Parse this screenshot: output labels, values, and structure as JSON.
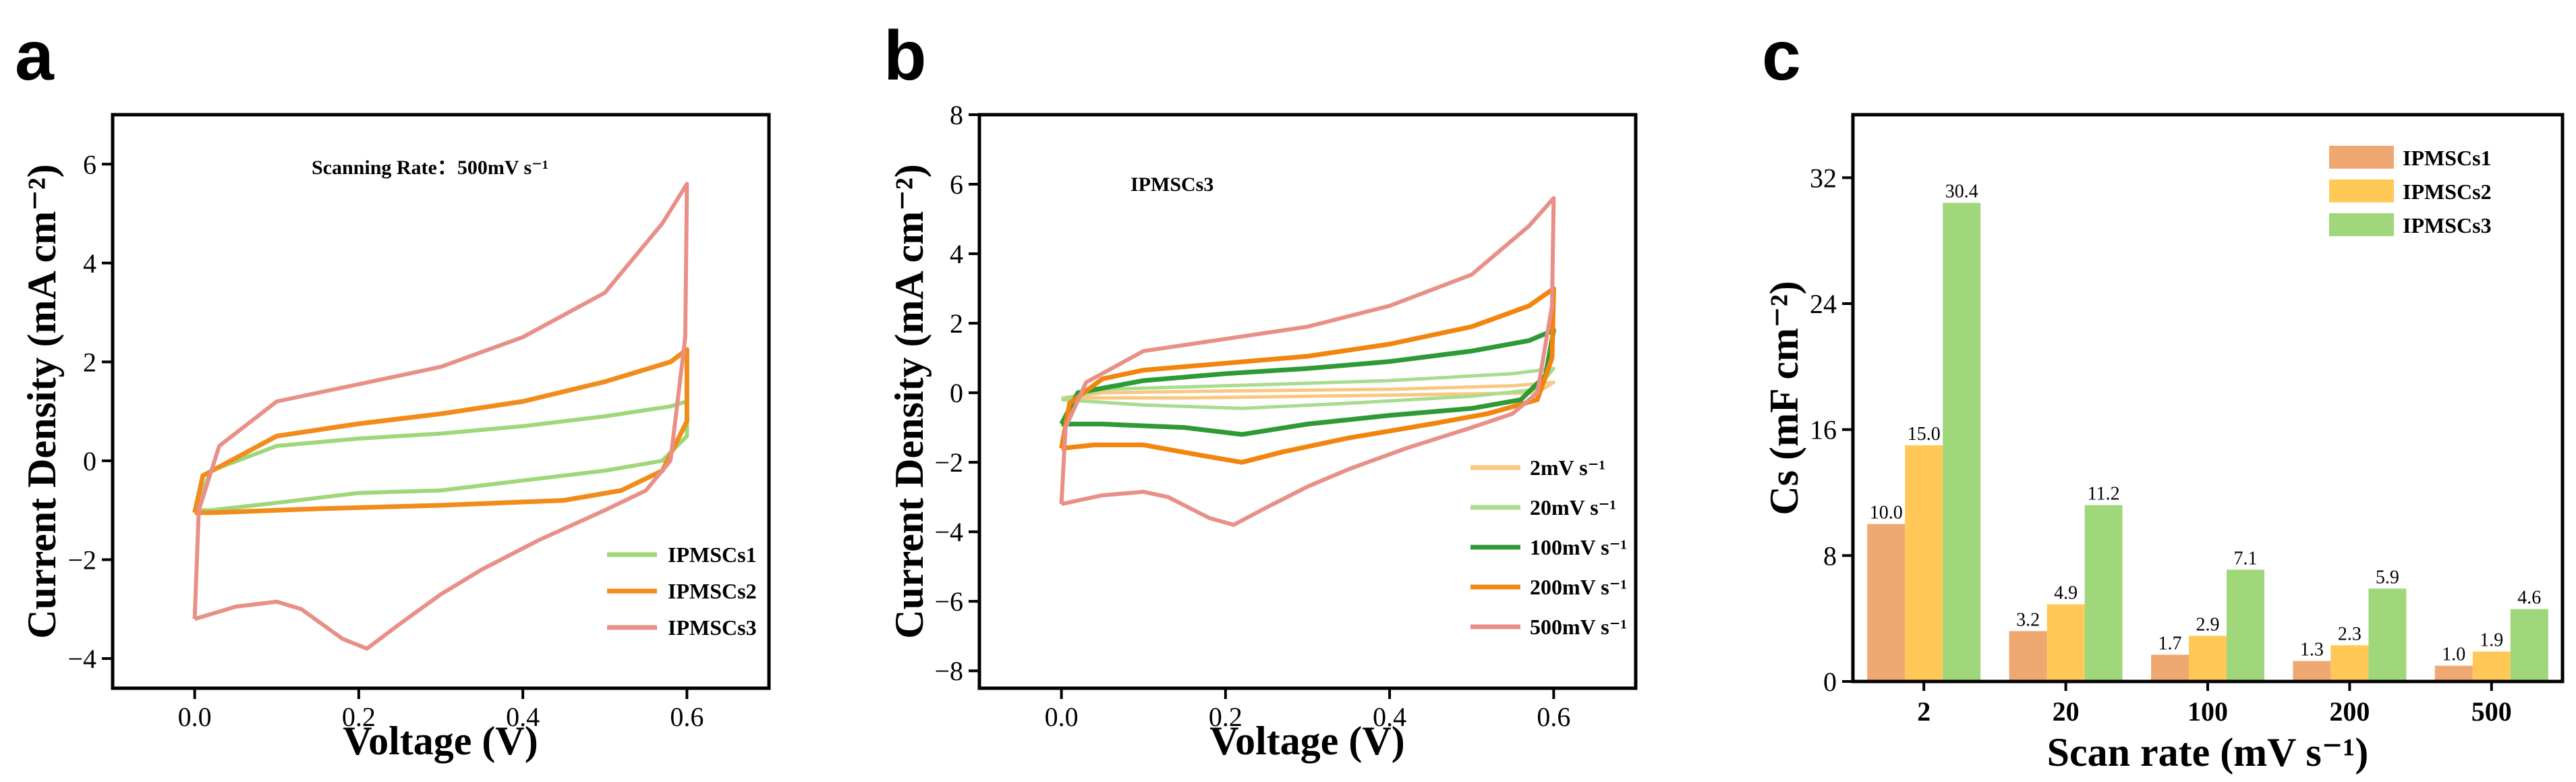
{
  "colors": {
    "IPMSCs1": "#9fd77a",
    "IPMSCs2": "#f18c1c",
    "IPMSCs3": "#e89088",
    "rate_2": "#f8c880",
    "rate_20": "#a8dc8e",
    "rate_100": "#2e9a35",
    "rate_200": "#f1850e",
    "rate_500": "#e89088",
    "bar1": "#f0a873",
    "bar2": "#ffc857",
    "bar3": "#9fd77a"
  },
  "chart_data": [
    {
      "panel": "a",
      "type": "line",
      "title": "Scanning Rate：500mV s⁻¹",
      "xlabel": "Voltage (V)",
      "ylabel": "Current Density (mA cm⁻²)",
      "xlim": [
        -0.1,
        0.7
      ],
      "ylim": [
        -4.6,
        7.0
      ],
      "xticks": [
        "0.0",
        "0.2",
        "0.4",
        "0.6"
      ],
      "yticks": [
        "−4",
        "−2",
        "0",
        "2",
        "4",
        "6"
      ],
      "legend": [
        "IPMSCs1",
        "IPMSCs2",
        "IPMSCs3"
      ],
      "legend_position": "bottom-right",
      "series": [
        {
          "name": "IPMSCs1",
          "anodic": [
            [
              0.0,
              -1.0
            ],
            [
              0.02,
              -0.2
            ],
            [
              0.1,
              0.3
            ],
            [
              0.2,
              0.45
            ],
            [
              0.3,
              0.55
            ],
            [
              0.4,
              0.7
            ],
            [
              0.5,
              0.9
            ],
            [
              0.58,
              1.1
            ],
            [
              0.6,
              1.2
            ]
          ],
          "cathodic": [
            [
              0.6,
              1.2
            ],
            [
              0.6,
              0.5
            ],
            [
              0.57,
              0.0
            ],
            [
              0.5,
              -0.2
            ],
            [
              0.4,
              -0.4
            ],
            [
              0.3,
              -0.6
            ],
            [
              0.2,
              -0.65
            ],
            [
              0.1,
              -0.85
            ],
            [
              0.02,
              -1.0
            ],
            [
              0.0,
              -1.0
            ]
          ]
        },
        {
          "name": "IPMSCs2",
          "anodic": [
            [
              0.0,
              -1.05
            ],
            [
              0.01,
              -0.3
            ],
            [
              0.1,
              0.5
            ],
            [
              0.2,
              0.75
            ],
            [
              0.3,
              0.95
            ],
            [
              0.4,
              1.2
            ],
            [
              0.5,
              1.6
            ],
            [
              0.58,
              2.0
            ],
            [
              0.6,
              2.25
            ]
          ],
          "cathodic": [
            [
              0.6,
              2.25
            ],
            [
              0.6,
              0.8
            ],
            [
              0.57,
              -0.2
            ],
            [
              0.52,
              -0.6
            ],
            [
              0.45,
              -0.8
            ],
            [
              0.3,
              -0.9
            ],
            [
              0.15,
              -0.97
            ],
            [
              0.02,
              -1.05
            ],
            [
              0.0,
              -1.05
            ]
          ]
        },
        {
          "name": "IPMSCs3",
          "anodic": [
            [
              0.0,
              -3.2
            ],
            [
              0.005,
              -1.0
            ],
            [
              0.03,
              0.3
            ],
            [
              0.1,
              1.2
            ],
            [
              0.2,
              1.55
            ],
            [
              0.3,
              1.9
            ],
            [
              0.4,
              2.5
            ],
            [
              0.5,
              3.4
            ],
            [
              0.57,
              4.8
            ],
            [
              0.6,
              5.6
            ]
          ],
          "cathodic": [
            [
              0.6,
              5.6
            ],
            [
              0.598,
              2.5
            ],
            [
              0.58,
              0.0
            ],
            [
              0.55,
              -0.6
            ],
            [
              0.5,
              -1.0
            ],
            [
              0.42,
              -1.6
            ],
            [
              0.35,
              -2.2
            ],
            [
              0.3,
              -2.7
            ],
            [
              0.25,
              -3.3
            ],
            [
              0.21,
              -3.8
            ],
            [
              0.18,
              -3.6
            ],
            [
              0.13,
              -3.0
            ],
            [
              0.1,
              -2.85
            ],
            [
              0.05,
              -2.95
            ],
            [
              0.01,
              -3.15
            ],
            [
              0.0,
              -3.2
            ]
          ]
        }
      ]
    },
    {
      "panel": "b",
      "type": "line",
      "title": "IPMSCs3",
      "xlabel": "Voltage (V)",
      "ylabel": "Current Density (mA cm⁻²)",
      "xlim": [
        -0.1,
        0.7
      ],
      "ylim": [
        -8.5,
        8.0
      ],
      "xticks": [
        "0.0",
        "0.2",
        "0.4",
        "0.6"
      ],
      "yticks": [
        "−8",
        "−6",
        "−4",
        "−2",
        "0",
        "2",
        "4",
        "6",
        "8"
      ],
      "legend": [
        "2mV s⁻¹",
        "20mV s⁻¹",
        "100mV s⁻¹",
        "200mV s⁻¹",
        "500mV s⁻¹"
      ],
      "legend_position": "bottom-right",
      "series": [
        {
          "name": "2mV s⁻¹",
          "anodic": [
            [
              0.0,
              -0.15
            ],
            [
              0.05,
              0.0
            ],
            [
              0.2,
              0.05
            ],
            [
              0.4,
              0.1
            ],
            [
              0.55,
              0.2
            ],
            [
              0.6,
              0.3
            ]
          ],
          "cathodic": [
            [
              0.6,
              0.3
            ],
            [
              0.58,
              0.0
            ],
            [
              0.45,
              -0.05
            ],
            [
              0.3,
              -0.1
            ],
            [
              0.15,
              -0.15
            ],
            [
              0.0,
              -0.15
            ]
          ]
        },
        {
          "name": "20mV s⁻¹",
          "anodic": [
            [
              0.0,
              -0.2
            ],
            [
              0.05,
              0.1
            ],
            [
              0.2,
              0.2
            ],
            [
              0.4,
              0.35
            ],
            [
              0.55,
              0.55
            ],
            [
              0.6,
              0.7
            ]
          ],
          "cathodic": [
            [
              0.6,
              0.7
            ],
            [
              0.58,
              0.1
            ],
            [
              0.5,
              -0.1
            ],
            [
              0.35,
              -0.3
            ],
            [
              0.22,
              -0.45
            ],
            [
              0.1,
              -0.35
            ],
            [
              0.0,
              -0.2
            ]
          ]
        },
        {
          "name": "100mV s⁻¹",
          "anodic": [
            [
              0.0,
              -0.9
            ],
            [
              0.02,
              0.0
            ],
            [
              0.1,
              0.35
            ],
            [
              0.2,
              0.55
            ],
            [
              0.3,
              0.7
            ],
            [
              0.4,
              0.9
            ],
            [
              0.5,
              1.2
            ],
            [
              0.57,
              1.5
            ],
            [
              0.6,
              1.8
            ]
          ],
          "cathodic": [
            [
              0.6,
              1.8
            ],
            [
              0.59,
              0.5
            ],
            [
              0.56,
              -0.2
            ],
            [
              0.5,
              -0.45
            ],
            [
              0.4,
              -0.65
            ],
            [
              0.3,
              -0.9
            ],
            [
              0.22,
              -1.2
            ],
            [
              0.15,
              -1.0
            ],
            [
              0.05,
              -0.9
            ],
            [
              0.0,
              -0.9
            ]
          ]
        },
        {
          "name": "200mV s⁻¹",
          "anodic": [
            [
              0.0,
              -1.6
            ],
            [
              0.01,
              -0.3
            ],
            [
              0.05,
              0.4
            ],
            [
              0.1,
              0.65
            ],
            [
              0.2,
              0.85
            ],
            [
              0.3,
              1.05
            ],
            [
              0.4,
              1.4
            ],
            [
              0.5,
              1.9
            ],
            [
              0.57,
              2.5
            ],
            [
              0.6,
              3.0
            ]
          ],
          "cathodic": [
            [
              0.6,
              3.0
            ],
            [
              0.598,
              1.0
            ],
            [
              0.58,
              -0.2
            ],
            [
              0.52,
              -0.6
            ],
            [
              0.45,
              -0.9
            ],
            [
              0.35,
              -1.3
            ],
            [
              0.27,
              -1.7
            ],
            [
              0.22,
              -2.0
            ],
            [
              0.17,
              -1.8
            ],
            [
              0.1,
              -1.5
            ],
            [
              0.04,
              -1.5
            ],
            [
              0.0,
              -1.6
            ]
          ]
        },
        {
          "name": "500mV s⁻¹",
          "anodic": [
            [
              0.0,
              -3.2
            ],
            [
              0.005,
              -1.0
            ],
            [
              0.03,
              0.3
            ],
            [
              0.1,
              1.2
            ],
            [
              0.2,
              1.55
            ],
            [
              0.3,
              1.9
            ],
            [
              0.4,
              2.5
            ],
            [
              0.5,
              3.4
            ],
            [
              0.57,
              4.8
            ],
            [
              0.6,
              5.6
            ]
          ],
          "cathodic": [
            [
              0.6,
              5.6
            ],
            [
              0.598,
              2.5
            ],
            [
              0.58,
              0.0
            ],
            [
              0.55,
              -0.6
            ],
            [
              0.5,
              -1.0
            ],
            [
              0.42,
              -1.6
            ],
            [
              0.35,
              -2.2
            ],
            [
              0.3,
              -2.7
            ],
            [
              0.25,
              -3.3
            ],
            [
              0.21,
              -3.8
            ],
            [
              0.18,
              -3.6
            ],
            [
              0.13,
              -3.0
            ],
            [
              0.1,
              -2.85
            ],
            [
              0.05,
              -2.95
            ],
            [
              0.01,
              -3.15
            ],
            [
              0.0,
              -3.2
            ]
          ]
        }
      ]
    },
    {
      "panel": "c",
      "type": "bar",
      "title": "",
      "xlabel": "Scan rate (mV s⁻¹)",
      "ylabel": "Cs (mF cm⁻²)",
      "ylim": [
        0,
        36
      ],
      "yticks": [
        "0",
        "8",
        "16",
        "24",
        "32"
      ],
      "categories": [
        "2",
        "20",
        "100",
        "200",
        "500"
      ],
      "legend_position": "top-right",
      "series": [
        {
          "name": "IPMSCs1",
          "values": [
            10.0,
            3.2,
            1.7,
            1.3,
            1.0
          ],
          "labels": [
            "10.0",
            "3.2",
            "1.7",
            "1.3",
            "1.0"
          ]
        },
        {
          "name": "IPMSCs2",
          "values": [
            15.0,
            4.9,
            2.9,
            2.3,
            1.9
          ],
          "labels": [
            "15.0",
            "4.9",
            "2.9",
            "2.3",
            "1.9"
          ]
        },
        {
          "name": "IPMSCs3",
          "values": [
            30.4,
            11.2,
            7.1,
            5.9,
            4.6
          ],
          "labels": [
            "30.4",
            "11.2",
            "7.1",
            "5.9",
            "4.6"
          ]
        }
      ]
    }
  ],
  "panel_labels": [
    "a",
    "b",
    "c"
  ]
}
